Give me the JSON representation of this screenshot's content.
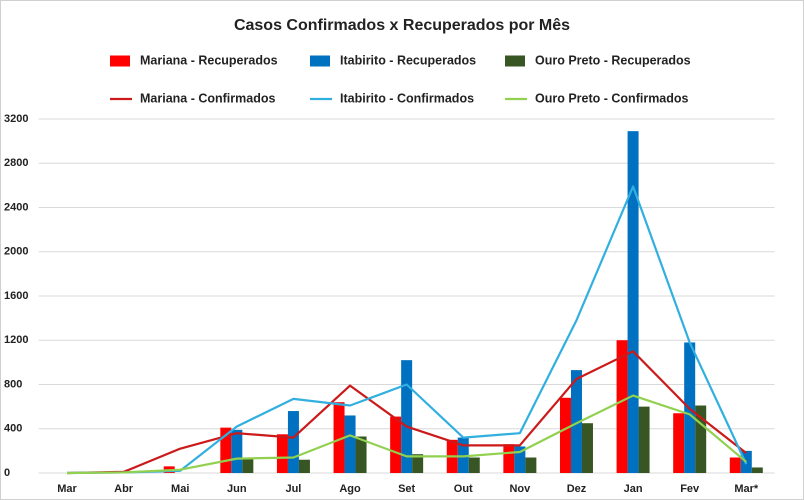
{
  "chart_data": {
    "type": "combo",
    "title": "Casos Confirmados x Recuperados por Mês",
    "categories": [
      "Mar",
      "Abr",
      "Mai",
      "Jun",
      "Jul",
      "Ago",
      "Set",
      "Out",
      "Nov",
      "Dez",
      "Jan",
      "Fev",
      "Mar*"
    ],
    "ylim": [
      0,
      3200
    ],
    "yticks": [
      0,
      400,
      800,
      1200,
      1600,
      2000,
      2400,
      2800,
      3200
    ],
    "grid": true,
    "series": [
      {
        "name": "Mariana - Recuperados",
        "type": "bar",
        "color": "#ff0000",
        "values": [
          0,
          0,
          60,
          410,
          350,
          640,
          510,
          300,
          260,
          680,
          1200,
          540,
          140
        ]
      },
      {
        "name": "Itabirito - Recuperados",
        "type": "bar",
        "color": "#0070c0",
        "values": [
          0,
          0,
          0,
          390,
          560,
          520,
          1020,
          320,
          240,
          930,
          3090,
          1180,
          200
        ]
      },
      {
        "name": "Ouro Preto - Recuperados",
        "type": "bar",
        "color": "#375623",
        "values": [
          0,
          0,
          0,
          130,
          120,
          330,
          170,
          140,
          140,
          450,
          600,
          610,
          50
        ]
      },
      {
        "name": "Mariana - Confirmados",
        "type": "line",
        "color": "#cc1a1a",
        "values": [
          0,
          10,
          220,
          360,
          320,
          790,
          420,
          250,
          250,
          850,
          1100,
          580,
          180
        ]
      },
      {
        "name": "Itabirito - Confirmados",
        "type": "line",
        "color": "#31b0e0",
        "values": [
          0,
          5,
          20,
          420,
          670,
          610,
          800,
          320,
          360,
          1380,
          2590,
          1180,
          80
        ]
      },
      {
        "name": "Ouro Preto - Confirmados",
        "type": "line",
        "color": "#92d050",
        "values": [
          0,
          5,
          30,
          130,
          140,
          340,
          150,
          150,
          190,
          450,
          700,
          530,
          100
        ]
      }
    ]
  }
}
